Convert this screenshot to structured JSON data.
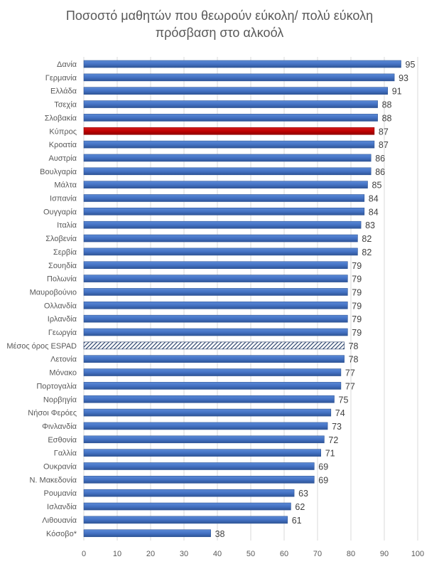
{
  "chart_data": {
    "type": "bar",
    "orientation": "horizontal",
    "title": "Ποσοστό μαθητών που θεωρούν εύκολη/ πολύ εύκολη\nπρόσβαση στο αλκοόλ",
    "categories": [
      "Δανία",
      "Γερμανία",
      "Ελλάδα",
      "Τσεχία",
      "Σλοβακία",
      "Κύπρος",
      "Κροατία",
      "Αυστρία",
      "Βουλγαρία",
      "Μάλτα",
      "Ισπανία",
      "Ουγγαρία",
      "Ιταλία",
      "Σλοβενία",
      "Σερβία",
      "Σουηδία",
      "Πολωνία",
      "Μαυροβούνιο",
      "Ολλανδία",
      "Ιρλανδία",
      "Γεωργία",
      "Μέσος όρος ESPAD",
      "Λετονία",
      "Μόνακο",
      "Πορτογαλία",
      "Νορβηγία",
      "Νήσοι Φερόες",
      "Φινλανδία",
      "Εσθονία",
      "Γαλλία",
      "Ουκρανία",
      "Ν. Μακεδονία",
      "Ρουμανία",
      "Ισλανδία",
      "Λιθουανία",
      "Κόσοβο*"
    ],
    "values": [
      95,
      93,
      91,
      88,
      88,
      87,
      87,
      86,
      86,
      85,
      84,
      84,
      83,
      82,
      82,
      79,
      79,
      79,
      79,
      79,
      79,
      78,
      78,
      77,
      77,
      75,
      74,
      73,
      72,
      71,
      69,
      69,
      63,
      62,
      61,
      38
    ],
    "bar_styles": {
      "default": "solid",
      "Κύπρος": "highlight",
      "Μέσος όρος ESPAD": "hatched"
    },
    "xlim": [
      0,
      100
    ],
    "x_ticks": [
      0,
      10,
      20,
      30,
      40,
      50,
      60,
      70,
      80,
      90,
      100
    ],
    "grid": "vertical",
    "data_labels": true,
    "legend": "none",
    "colors": {
      "bar": "#4472c4",
      "bar_dark": "#2f5597",
      "highlight": "#c00000",
      "hatch": "#1f3864",
      "grid": "#d9d9d9",
      "text": "#595959"
    }
  }
}
